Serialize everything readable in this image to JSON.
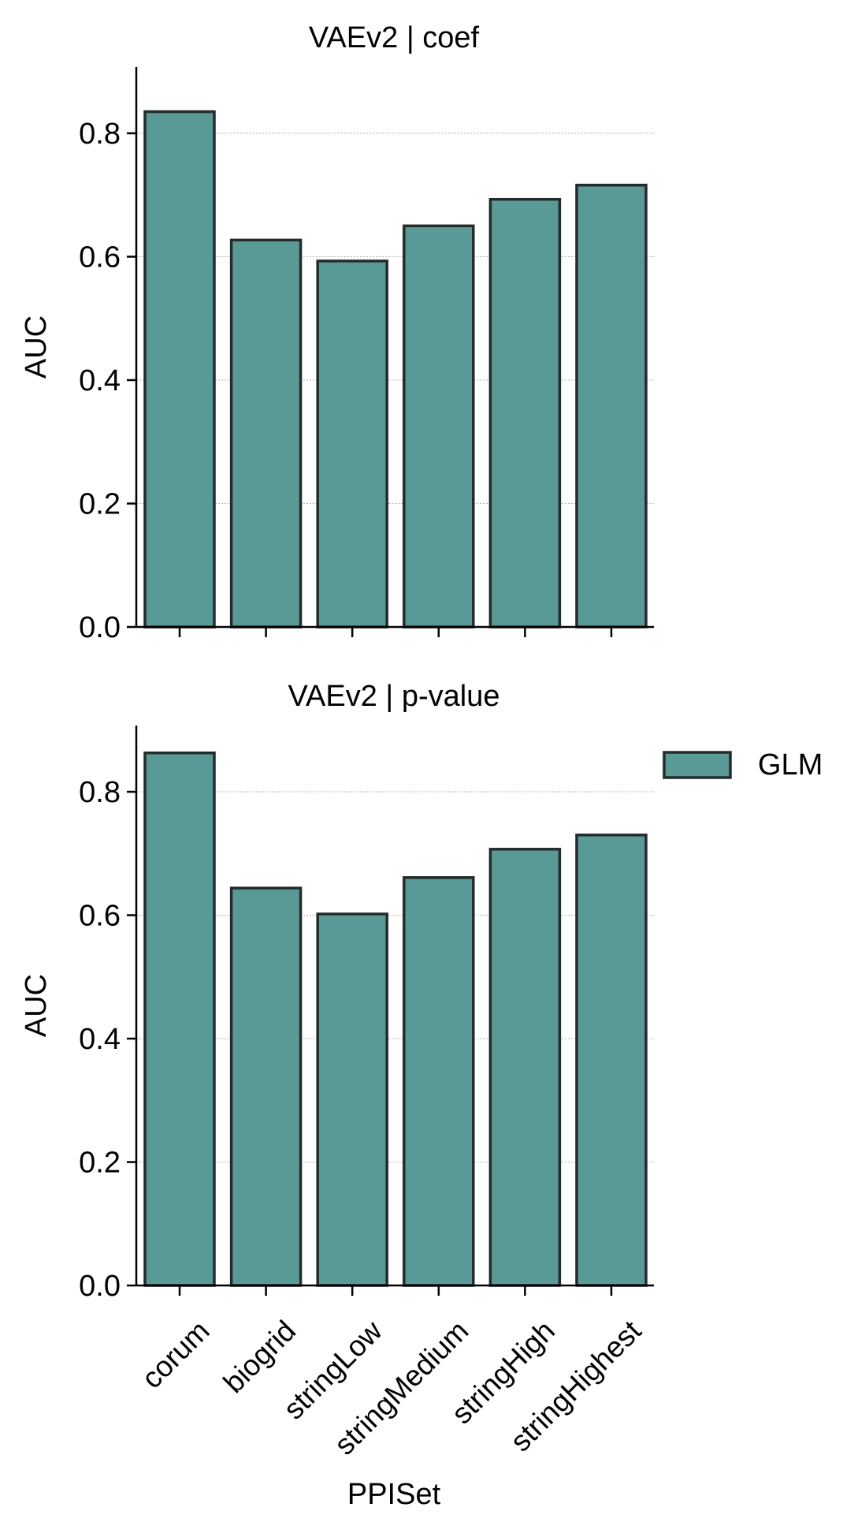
{
  "chart_data": [
    {
      "type": "bar",
      "title": "VAEv2 | coef",
      "ylabel": "AUC",
      "xlabel": "",
      "categories": [
        "corum",
        "biogrid",
        "stringLow",
        "stringMedium",
        "stringHigh",
        "stringHighest"
      ],
      "show_category_labels": false,
      "series": [
        {
          "name": "GLM",
          "values": [
            0.835,
            0.627,
            0.593,
            0.65,
            0.693,
            0.716
          ]
        }
      ],
      "ylim": [
        0,
        0.9
      ],
      "yticks": [
        "0.0",
        "0.2",
        "0.4",
        "0.6",
        "0.8"
      ],
      "grid": "horizontal dotted"
    },
    {
      "type": "bar",
      "title": "VAEv2 | p-value",
      "ylabel": "AUC",
      "xlabel": "PPISet",
      "categories": [
        "corum",
        "biogrid",
        "stringLow",
        "stringMedium",
        "stringHigh",
        "stringHighest"
      ],
      "show_category_labels": true,
      "series": [
        {
          "name": "GLM",
          "values": [
            0.863,
            0.644,
            0.602,
            0.661,
            0.707,
            0.73
          ]
        }
      ],
      "ylim": [
        0,
        0.9
      ],
      "yticks": [
        "0.0",
        "0.2",
        "0.4",
        "0.6",
        "0.8"
      ],
      "grid": "horizontal dotted"
    }
  ],
  "legend": {
    "entries": [
      {
        "label": "GLM",
        "color": "#5a9a96"
      }
    ],
    "placement": "right, beside bottom panel"
  },
  "colors": {
    "bar_fill": "#5a9a96",
    "bar_edge": "#232b2b",
    "grid": "#b0b0b0",
    "axis": "#000000"
  }
}
